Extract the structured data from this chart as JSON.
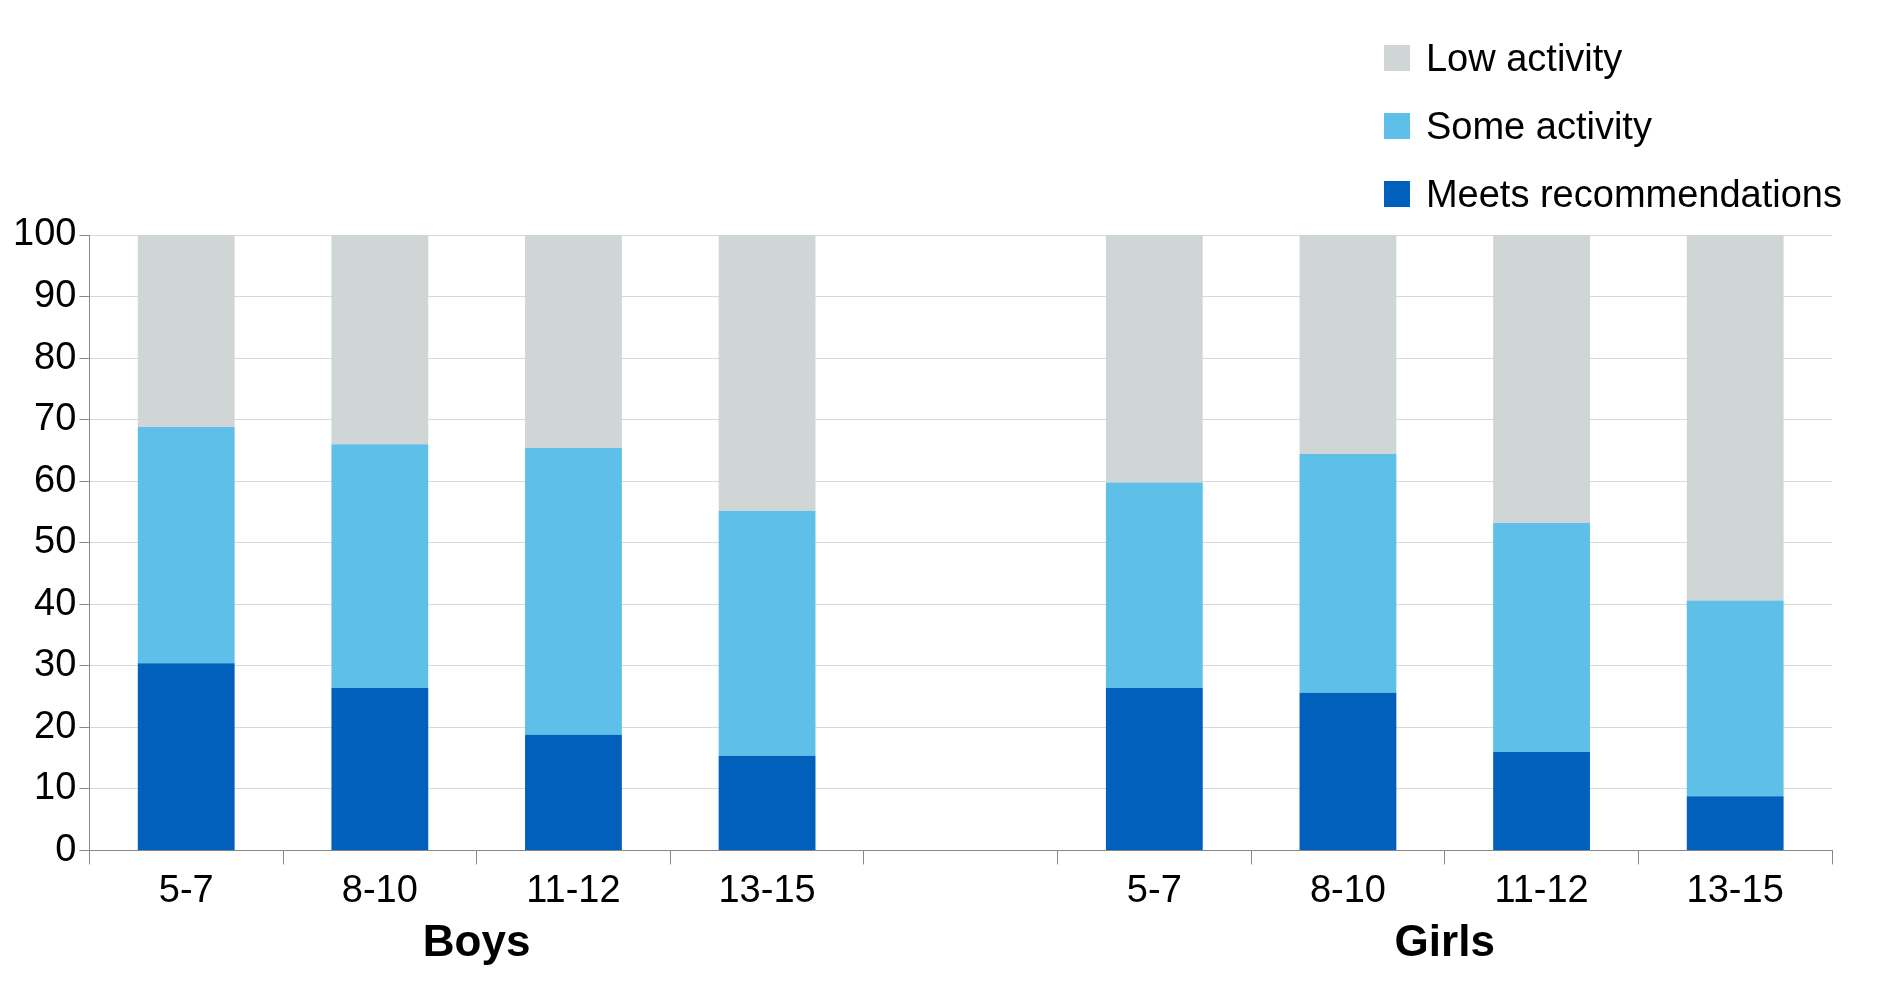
{
  "chart_data": {
    "type": "bar",
    "stacked": true,
    "categories": [
      "5-7",
      "8-10",
      "11-12",
      "13-15",
      null,
      "5-7",
      "8-10",
      "11-12",
      "13-15"
    ],
    "series": [
      {
        "name": "Meets recommendations",
        "color": "#0060bc",
        "values": [
          30.4,
          26.4,
          18.8,
          15.4,
          null,
          26.4,
          25.6,
          16,
          8.8
        ]
      },
      {
        "name": "Some activity",
        "color": "#5ec0e8",
        "values": [
          38.4,
          39.6,
          46.6,
          39.8,
          null,
          33.4,
          38.8,
          37.2,
          31.8
        ]
      },
      {
        "name": "Low activity",
        "color": "#d0d6d6",
        "values": [
          31.2,
          34,
          34.6,
          44.8,
          null,
          40.2,
          35.6,
          46.8,
          59.4
        ]
      }
    ],
    "ylim": [
      0,
      100
    ],
    "yticks": [
      0,
      10,
      20,
      30,
      40,
      50,
      60,
      70,
      80,
      90,
      100
    ],
    "grid": "y",
    "legend": "top right",
    "annotations": [
      "Boys",
      "Girls"
    ]
  }
}
